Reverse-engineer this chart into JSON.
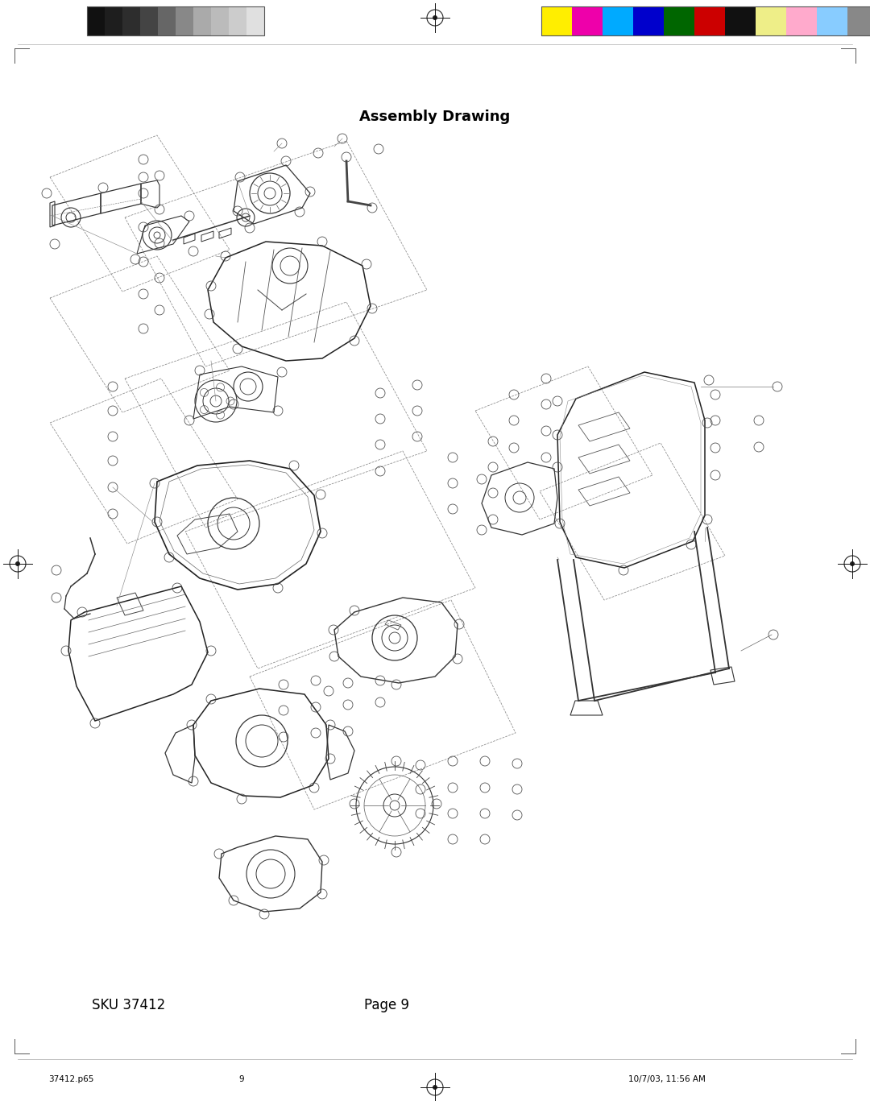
{
  "title": "Assembly Drawing",
  "title_fontsize": 13,
  "title_fontweight": "bold",
  "background_color": "#ffffff",
  "page_width": 10.8,
  "page_height": 13.67,
  "dpi": 100,
  "sku_text": "SKU 37412",
  "sku_fontsize": 12,
  "page_text": "Page 9",
  "page_fontsize": 12,
  "footer_left": "37412.p65",
  "footer_center": "9",
  "footer_right": "10/7/03, 11:56 AM",
  "footer_fontsize": 7.5,
  "gray_swatches": [
    "#111111",
    "#1e1e1e",
    "#2d2d2d",
    "#444444",
    "#666666",
    "#888888",
    "#aaaaaa",
    "#bbbbbb",
    "#cccccc",
    "#e0e0e0"
  ],
  "color_swatches": [
    "#ffee00",
    "#ee00aa",
    "#00aaff",
    "#0000cc",
    "#006600",
    "#cc0000",
    "#111111",
    "#eeee88",
    "#ffaacc",
    "#88ccff",
    "#888888"
  ]
}
